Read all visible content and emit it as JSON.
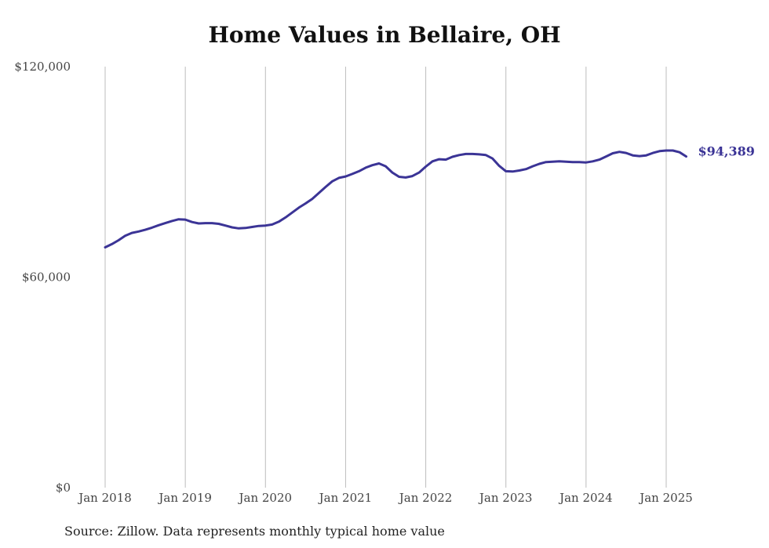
{
  "title": "Home Values in Bellaire, OH",
  "source": "Source: Zillow. Data represents monthly typical home value",
  "colors": {
    "line": "#3b3496",
    "grid": "#bdbdbd",
    "text": "#444444"
  },
  "chart_data": {
    "type": "line",
    "title": "Home Values in Bellaire, OH",
    "xlabel": "",
    "ylabel": "",
    "ylim": [
      0,
      120000
    ],
    "y_ticks": [
      {
        "value": 0,
        "label": "$0"
      },
      {
        "value": 60000,
        "label": "$60,000"
      },
      {
        "value": 120000,
        "label": "$120,000"
      }
    ],
    "x_ticks": [
      {
        "date": "2018-01",
        "label": "Jan 2018"
      },
      {
        "date": "2019-01",
        "label": "Jan 2019"
      },
      {
        "date": "2020-01",
        "label": "Jan 2020"
      },
      {
        "date": "2021-01",
        "label": "Jan 2021"
      },
      {
        "date": "2022-01",
        "label": "Jan 2022"
      },
      {
        "date": "2023-01",
        "label": "Jan 2023"
      },
      {
        "date": "2024-01",
        "label": "Jan 2024"
      },
      {
        "date": "2025-01",
        "label": "Jan 2025"
      }
    ],
    "grid": {
      "vertical": true,
      "horizontal": false
    },
    "end_label": "$94,389",
    "series": [
      {
        "x": [
          "2018-01",
          "2018-02",
          "2018-03",
          "2018-04",
          "2018-05",
          "2018-06",
          "2018-07",
          "2018-08",
          "2018-09",
          "2018-10",
          "2018-11",
          "2018-12",
          "2019-01",
          "2019-02",
          "2019-03",
          "2019-04",
          "2019-05",
          "2019-06",
          "2019-07",
          "2019-08",
          "2019-09",
          "2019-10",
          "2019-11",
          "2019-12",
          "2020-01",
          "2020-02",
          "2020-03",
          "2020-04",
          "2020-05",
          "2020-06",
          "2020-07",
          "2020-08",
          "2020-09",
          "2020-10",
          "2020-11",
          "2020-12",
          "2021-01",
          "2021-02",
          "2021-03",
          "2021-04",
          "2021-05",
          "2021-06",
          "2021-07",
          "2021-08",
          "2021-09",
          "2021-10",
          "2021-11",
          "2021-12",
          "2022-01",
          "2022-02",
          "2022-03",
          "2022-04",
          "2022-05",
          "2022-06",
          "2022-07",
          "2022-08",
          "2022-09",
          "2022-10",
          "2022-11",
          "2022-12",
          "2023-01",
          "2023-02",
          "2023-03",
          "2023-04",
          "2023-05",
          "2023-06",
          "2023-07",
          "2023-08",
          "2023-09",
          "2023-10",
          "2023-11",
          "2023-12",
          "2024-01",
          "2024-02",
          "2024-03",
          "2024-04",
          "2024-05",
          "2024-06",
          "2024-07",
          "2024-08",
          "2024-09",
          "2024-10",
          "2024-11",
          "2024-12",
          "2025-01",
          "2025-02",
          "2025-03",
          "2025-04"
        ],
        "values": [
          68500,
          69400,
          70500,
          71800,
          72600,
          73000,
          73500,
          74100,
          74800,
          75400,
          76000,
          76500,
          76400,
          75700,
          75300,
          75400,
          75400,
          75200,
          74700,
          74200,
          73900,
          74000,
          74300,
          74600,
          74700,
          75000,
          75800,
          77000,
          78400,
          79800,
          81000,
          82300,
          84000,
          85700,
          87300,
          88300,
          88700,
          89400,
          90200,
          91200,
          91900,
          92400,
          91600,
          89800,
          88600,
          88400,
          88800,
          89800,
          91500,
          93000,
          93600,
          93500,
          94300,
          94800,
          95100,
          95100,
          95000,
          94800,
          93800,
          91700,
          90200,
          90100,
          90400,
          90800,
          91600,
          92300,
          92800,
          92900,
          93000,
          92900,
          92800,
          92800,
          92700,
          93000,
          93500,
          94400,
          95300,
          95700,
          95400,
          94700,
          94500,
          94700,
          95400,
          95900,
          96100,
          96100,
          95600,
          94389
        ]
      }
    ]
  }
}
